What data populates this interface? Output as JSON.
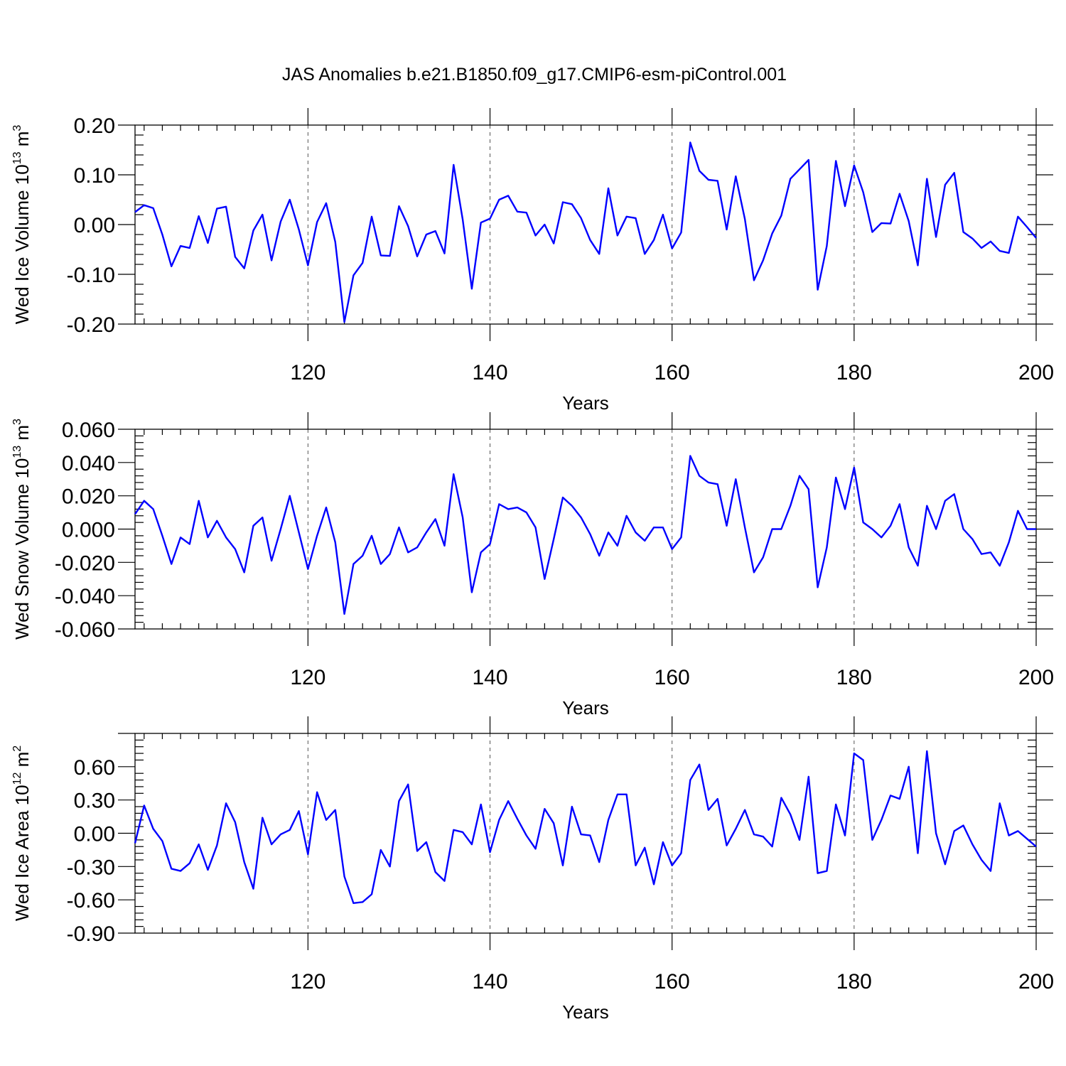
{
  "title": "JAS Anomalies b.e21.B1850.f09_g17.CMIP6-esm-piControl.001",
  "colors": {
    "line": "#0000ff",
    "grid": "#555555",
    "axis": "#000000"
  },
  "chart_data": [
    {
      "type": "line",
      "name": "ice-volume",
      "ylabel": "Wed Ice Volume 10",
      "ylabel_exp": "13",
      "ylabel_unit": " m",
      "ylabel_unit_exp": "3",
      "xlabel": "Years",
      "xlim": [
        101,
        200
      ],
      "ylim": [
        -0.2,
        0.2
      ],
      "xticks": [
        "120",
        "140",
        "160",
        "180",
        "200"
      ],
      "xtick_values": [
        120,
        140,
        160,
        180,
        200
      ],
      "yticks": [
        "0.20",
        "0.10",
        "0.00",
        "-0.10",
        "-0.20"
      ],
      "ytick_values": [
        0.2,
        0.1,
        0.0,
        -0.1,
        -0.2
      ],
      "x_start": 101,
      "values": [
        0.025,
        0.039,
        0.033,
        -0.02,
        -0.084,
        -0.043,
        -0.047,
        0.017,
        -0.037,
        0.032,
        0.036,
        -0.065,
        -0.088,
        -0.012,
        0.02,
        -0.072,
        0.006,
        0.05,
        -0.01,
        -0.082,
        0.005,
        0.043,
        -0.035,
        -0.196,
        -0.102,
        -0.077,
        0.016,
        -0.062,
        -0.063,
        0.037,
        -0.003,
        -0.064,
        -0.02,
        -0.013,
        -0.058,
        0.12,
        0.01,
        -0.129,
        0.004,
        0.012,
        0.05,
        0.058,
        0.026,
        0.024,
        -0.022,
        0.0,
        -0.038,
        0.045,
        0.041,
        0.013,
        -0.031,
        -0.059,
        0.073,
        -0.022,
        0.016,
        0.013,
        -0.059,
        -0.031,
        0.02,
        -0.048,
        -0.016,
        0.165,
        0.108,
        0.09,
        0.088,
        -0.01,
        0.097,
        0.011,
        -0.112,
        -0.072,
        -0.018,
        0.018,
        0.092,
        0.111,
        0.13,
        -0.131,
        -0.043,
        0.128,
        0.037,
        0.119,
        0.065,
        -0.015,
        0.003,
        0.002,
        0.062,
        0.007,
        -0.082,
        0.092,
        -0.025,
        0.08,
        0.104,
        -0.015,
        -0.028,
        -0.047,
        -0.034,
        -0.053,
        -0.057,
        0.016,
        -0.005,
        -0.027
      ]
    },
    {
      "type": "line",
      "name": "snow-volume",
      "ylabel": "Wed Snow Volume 10",
      "ylabel_exp": "13",
      "ylabel_unit": " m",
      "ylabel_unit_exp": "3",
      "xlabel": "Years",
      "xlim": [
        101,
        200
      ],
      "ylim": [
        -0.06,
        0.06
      ],
      "xticks": [
        "120",
        "140",
        "160",
        "180",
        "200"
      ],
      "xtick_values": [
        120,
        140,
        160,
        180,
        200
      ],
      "yticks": [
        "0.060",
        "0.040",
        "0.020",
        "0.000",
        "-0.020",
        "-0.040",
        "-0.060"
      ],
      "ytick_values": [
        0.06,
        0.04,
        0.02,
        0.0,
        -0.02,
        -0.04,
        -0.06
      ],
      "x_start": 101,
      "values": [
        0.009,
        0.017,
        0.012,
        -0.004,
        -0.021,
        -0.005,
        -0.009,
        0.017,
        -0.005,
        0.005,
        -0.005,
        -0.012,
        -0.026,
        0.002,
        0.007,
        -0.019,
        0.0,
        0.02,
        -0.002,
        -0.024,
        -0.004,
        0.013,
        -0.008,
        -0.051,
        -0.021,
        -0.016,
        -0.004,
        -0.021,
        -0.015,
        0.001,
        -0.014,
        -0.011,
        -0.002,
        0.006,
        -0.01,
        0.033,
        0.007,
        -0.038,
        -0.014,
        -0.009,
        0.015,
        0.012,
        0.013,
        0.01,
        0.001,
        -0.03,
        -0.006,
        0.019,
        0.014,
        0.007,
        -0.003,
        -0.016,
        -0.002,
        -0.01,
        0.008,
        -0.002,
        -0.007,
        0.001,
        0.001,
        -0.012,
        -0.005,
        0.044,
        0.032,
        0.028,
        0.027,
        0.002,
        0.03,
        0.001,
        -0.026,
        -0.017,
        0.0,
        0.0,
        0.014,
        0.032,
        0.024,
        -0.035,
        -0.011,
        0.031,
        0.012,
        0.037,
        0.004,
        0.0,
        -0.005,
        0.002,
        0.015,
        -0.011,
        -0.022,
        0.014,
        0.0,
        0.017,
        0.021,
        0.0,
        -0.006,
        -0.015,
        -0.014,
        -0.022,
        -0.008,
        0.011,
        0.0,
        0.0
      ]
    },
    {
      "type": "line",
      "name": "ice-area",
      "ylabel": "Wed Ice Area 10",
      "ylabel_exp": "12",
      "ylabel_unit": " m",
      "ylabel_unit_exp": "2",
      "xlabel": "Years",
      "xlim": [
        101,
        200
      ],
      "ylim": [
        -0.9,
        0.9
      ],
      "xticks": [
        "120",
        "140",
        "160",
        "180",
        "200"
      ],
      "xtick_values": [
        120,
        140,
        160,
        180,
        200
      ],
      "yticks": [
        "0.60",
        "0.30",
        "0.00",
        "-0.30",
        "-0.60",
        "-0.90"
      ],
      "ytick_values": [
        0.6,
        0.3,
        0.0,
        -0.3,
        -0.6,
        -0.9
      ],
      "x_start": 101,
      "values": [
        -0.09,
        0.25,
        0.04,
        -0.07,
        -0.32,
        -0.34,
        -0.27,
        -0.1,
        -0.33,
        -0.11,
        0.27,
        0.1,
        -0.26,
        -0.5,
        0.14,
        -0.1,
        -0.01,
        0.03,
        0.2,
        -0.19,
        0.37,
        0.12,
        0.21,
        -0.39,
        -0.63,
        -0.62,
        -0.55,
        -0.15,
        -0.3,
        0.29,
        0.44,
        -0.16,
        -0.08,
        -0.35,
        -0.43,
        0.03,
        0.01,
        -0.1,
        0.26,
        -0.17,
        0.12,
        0.29,
        0.13,
        -0.02,
        -0.14,
        0.22,
        0.09,
        -0.29,
        0.24,
        -0.01,
        -0.02,
        -0.26,
        0.12,
        0.35,
        0.35,
        -0.29,
        -0.13,
        -0.46,
        -0.08,
        -0.29,
        -0.18,
        0.48,
        0.62,
        0.21,
        0.31,
        -0.11,
        0.04,
        0.21,
        -0.01,
        -0.03,
        -0.12,
        0.32,
        0.17,
        -0.06,
        0.51,
        -0.36,
        -0.34,
        0.26,
        -0.02,
        0.72,
        0.66,
        -0.06,
        0.12,
        0.34,
        0.31,
        0.6,
        -0.18,
        0.74,
        0.0,
        -0.28,
        0.02,
        0.07,
        -0.1,
        -0.24,
        -0.34,
        0.27,
        -0.02,
        0.02,
        -0.05,
        -0.12
      ]
    }
  ]
}
